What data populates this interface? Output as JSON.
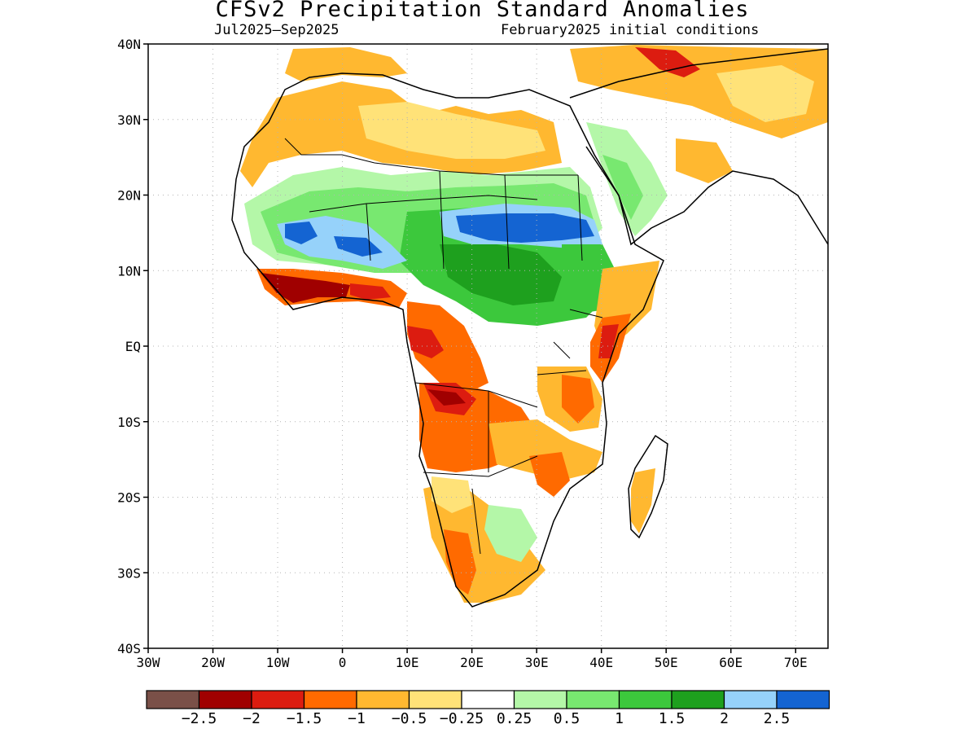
{
  "title": "CFSv2 Precipitation Standard Anomalies",
  "period": "Jul2025–Sep2025",
  "init": "February2025 initial conditions",
  "map": {
    "lon_range": [
      -30,
      75
    ],
    "lat_range": [
      -40,
      40
    ],
    "x_ticks": [
      "30W",
      "20W",
      "10W",
      "0",
      "10E",
      "20E",
      "30E",
      "40E",
      "50E",
      "60E",
      "70E"
    ],
    "y_ticks": [
      "40N",
      "30N",
      "20N",
      "10N",
      "EQ",
      "10S",
      "20S",
      "30S",
      "40S"
    ],
    "grid": "dotted"
  },
  "colorbar": {
    "colors": [
      "#7a5048",
      "#a00000",
      "#dc1c10",
      "#ff6a00",
      "#ffb830",
      "#ffe278",
      "#ffffff",
      "#b4f7a8",
      "#78e870",
      "#3cc83c",
      "#1ea01e",
      "#96d2fa",
      "#1464d2"
    ],
    "labels": [
      "−2.5",
      "−2",
      "−1.5",
      "−1",
      "−0.5",
      "−0.25",
      "0.25",
      "0.5",
      "1",
      "1.5",
      "2",
      "2.5"
    ]
  },
  "anomaly_regions": [
    {
      "name": "sahel-band",
      "level": "1"
    },
    {
      "name": "chad-sudan-wet-core",
      "level": "2.5"
    },
    {
      "name": "mali-wet-core",
      "level": "2"
    },
    {
      "name": "guinea-coast-dry",
      "level": "−2"
    },
    {
      "name": "gabon-congo-dry",
      "level": "−1.5"
    },
    {
      "name": "angola-dry",
      "level": "−2"
    },
    {
      "name": "east-africa-dry",
      "level": "−1"
    },
    {
      "name": "sahara-dry",
      "level": "−0.5"
    },
    {
      "name": "southern-africa-dry",
      "level": "−1"
    },
    {
      "name": "arabia-wet",
      "level": "0.5"
    }
  ]
}
